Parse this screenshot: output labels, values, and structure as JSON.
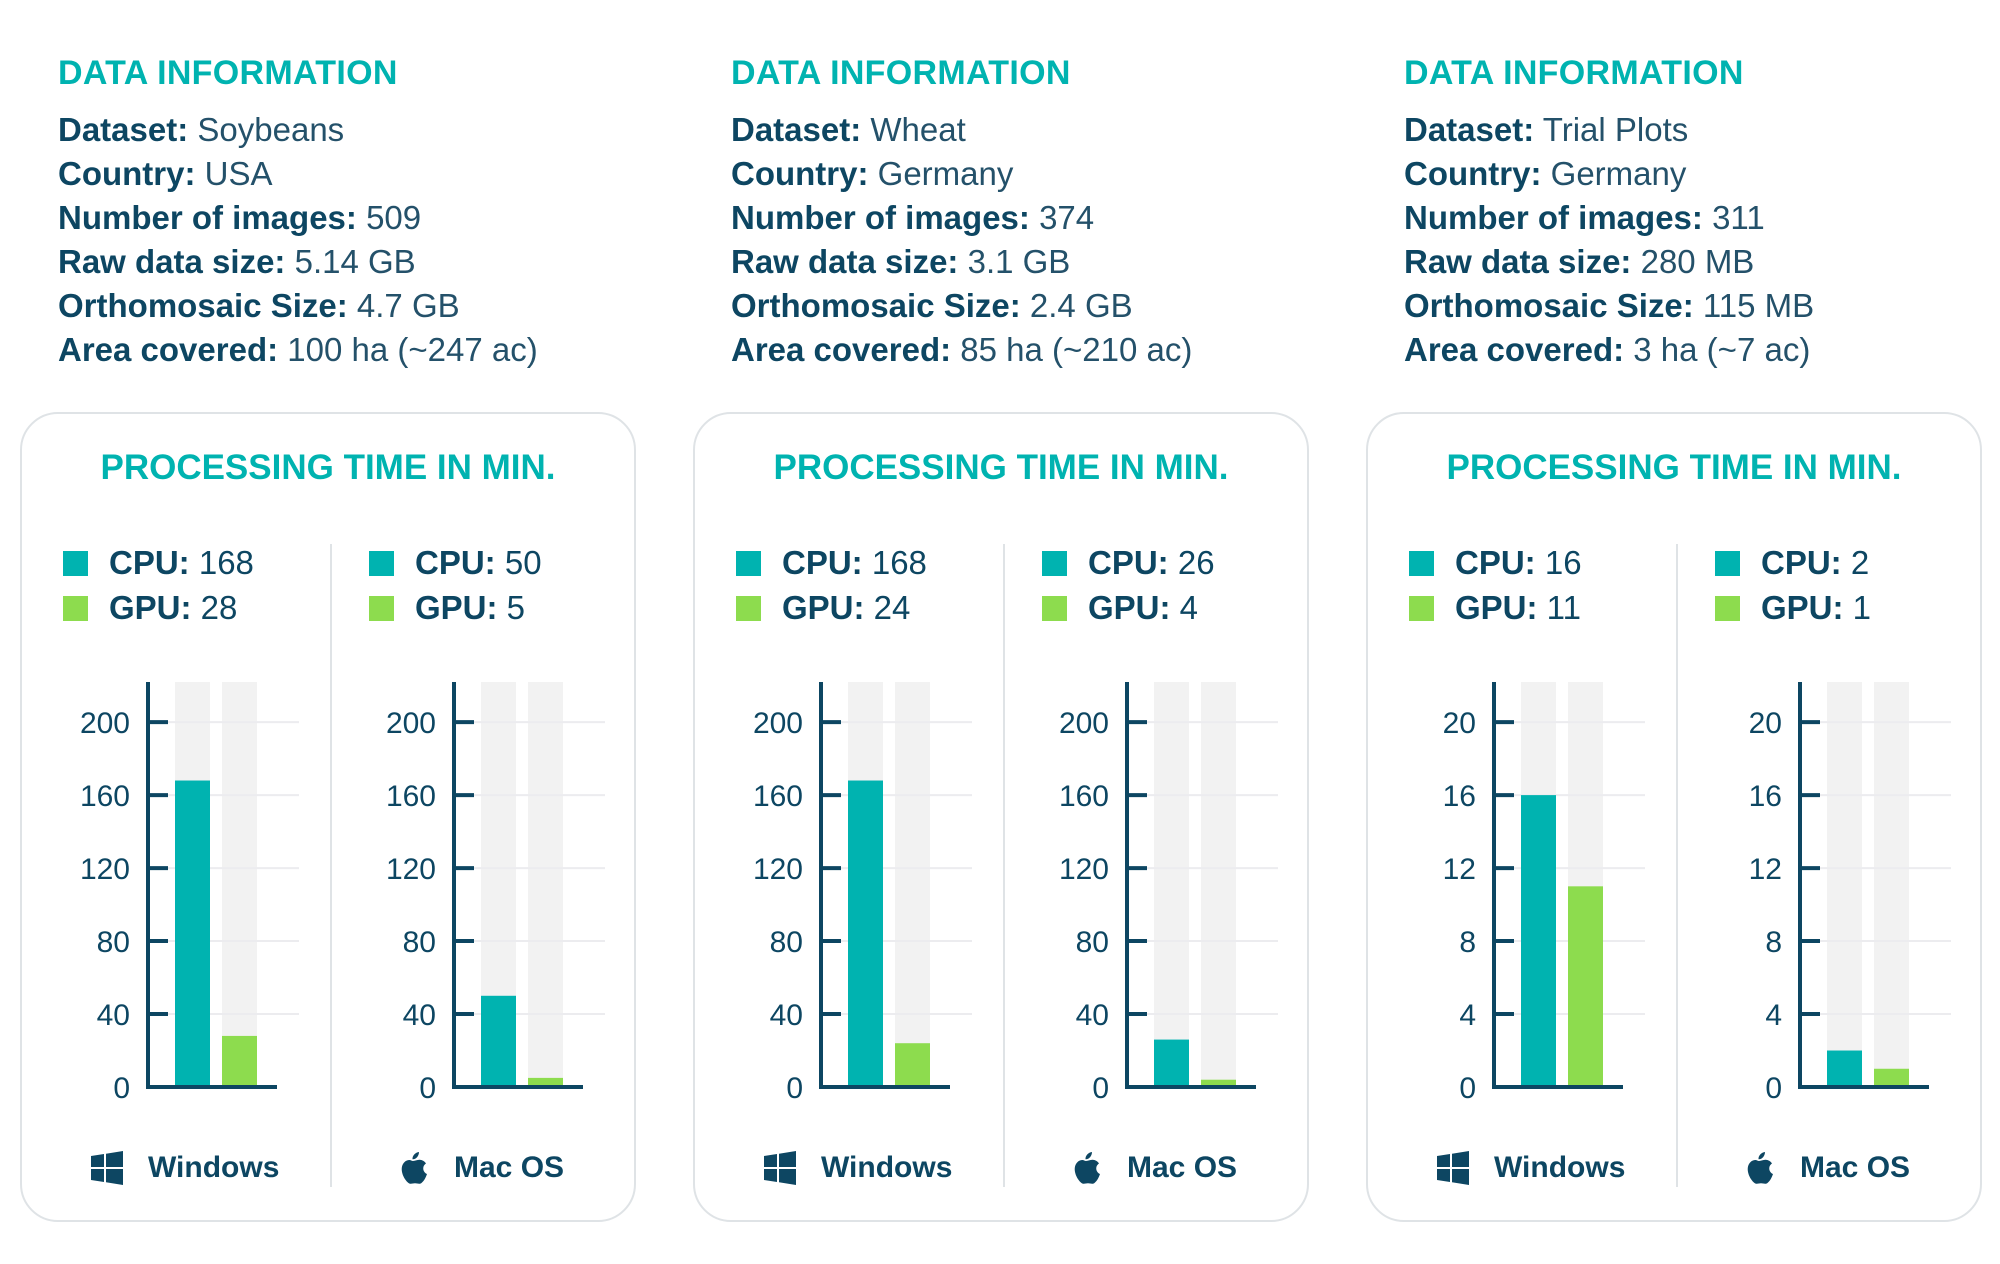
{
  "colors": {
    "cpu": "#00b3b0",
    "gpu": "#8ddc4e",
    "axis": "#0d4662",
    "track": "#f2f2f2",
    "title": "#00b3b0"
  },
  "panels": [
    {
      "info_title": "DATA INFORMATION",
      "info": [
        {
          "label": "Dataset:",
          "value": "Soybeans"
        },
        {
          "label": "Country:",
          "value": "USA"
        },
        {
          "label": "Number of images:",
          "value": "509"
        },
        {
          "label": "Raw data size:",
          "value": "5.14 GB"
        },
        {
          "label": "Orthomosaic Size:",
          "value": "4.7 GB"
        },
        {
          "label": "Area covered:",
          "value": "100 ha (~247 ac)"
        }
      ],
      "card_title": "PROCESSING TIME IN MIN."
    },
    {
      "info_title": "DATA INFORMATION",
      "info": [
        {
          "label": "Dataset:",
          "value": "Wheat"
        },
        {
          "label": "Country:",
          "value": "Germany"
        },
        {
          "label": "Number of images:",
          "value": "374"
        },
        {
          "label": "Raw data size:",
          "value": "3.1 GB"
        },
        {
          "label": "Orthomosaic Size:",
          "value": "2.4 GB"
        },
        {
          "label": "Area covered:",
          "value": "85 ha (~210 ac)"
        }
      ],
      "card_title": "PROCESSING TIME IN MIN."
    },
    {
      "info_title": "DATA INFORMATION",
      "info": [
        {
          "label": "Dataset:",
          "value": "Trial Plots"
        },
        {
          "label": "Country:",
          "value": "Germany"
        },
        {
          "label": "Number of images:",
          "value": "311"
        },
        {
          "label": "Raw data size:",
          "value": "280 MB"
        },
        {
          "label": "Orthomosaic Size:",
          "value": "115 MB"
        },
        {
          "label": "Area covered:",
          "value": "3 ha (~7 ac)"
        }
      ],
      "card_title": "PROCESSING TIME IN MIN."
    }
  ],
  "chart_data": [
    {
      "type": "bar",
      "panel": 0,
      "os": "Windows",
      "os_icon": "windows-icon",
      "categories": [
        "CPU",
        "GPU"
      ],
      "legend": [
        "CPU:",
        "GPU:"
      ],
      "values": [
        168,
        28
      ],
      "yticks": [
        "0",
        "40",
        "80",
        "120",
        "160",
        "200"
      ],
      "ylim": [
        0,
        222
      ],
      "grid": true
    },
    {
      "type": "bar",
      "panel": 0,
      "os": "Mac OS",
      "os_icon": "apple-icon",
      "categories": [
        "CPU",
        "GPU"
      ],
      "legend": [
        "CPU:",
        "GPU:"
      ],
      "values": [
        50,
        5
      ],
      "yticks": [
        "0",
        "40",
        "80",
        "120",
        "160",
        "200"
      ],
      "ylim": [
        0,
        222
      ],
      "grid": true
    },
    {
      "type": "bar",
      "panel": 1,
      "os": "Windows",
      "os_icon": "windows-icon",
      "categories": [
        "CPU",
        "GPU"
      ],
      "legend": [
        "CPU:",
        "GPU:"
      ],
      "values": [
        168,
        24
      ],
      "yticks": [
        "0",
        "40",
        "80",
        "120",
        "160",
        "200"
      ],
      "ylim": [
        0,
        222
      ],
      "grid": true
    },
    {
      "type": "bar",
      "panel": 1,
      "os": "Mac OS",
      "os_icon": "apple-icon",
      "categories": [
        "CPU",
        "GPU"
      ],
      "legend": [
        "CPU:",
        "GPU:"
      ],
      "values": [
        26,
        4
      ],
      "yticks": [
        "0",
        "40",
        "80",
        "120",
        "160",
        "200"
      ],
      "ylim": [
        0,
        222
      ],
      "grid": true
    },
    {
      "type": "bar",
      "panel": 2,
      "os": "Windows",
      "os_icon": "windows-icon",
      "categories": [
        "CPU",
        "GPU"
      ],
      "legend": [
        "CPU:",
        "GPU:"
      ],
      "values": [
        16,
        11
      ],
      "yticks": [
        "0",
        "4",
        "8",
        "12",
        "16",
        "20"
      ],
      "ylim": [
        0,
        22.2
      ],
      "grid": true
    },
    {
      "type": "bar",
      "panel": 2,
      "os": "Mac OS",
      "os_icon": "apple-icon",
      "categories": [
        "CPU",
        "GPU"
      ],
      "legend": [
        "CPU:",
        "GPU:"
      ],
      "values": [
        2,
        1
      ],
      "yticks": [
        "0",
        "4",
        "8",
        "12",
        "16",
        "20"
      ],
      "ylim": [
        0,
        22.2
      ],
      "grid": true
    }
  ]
}
